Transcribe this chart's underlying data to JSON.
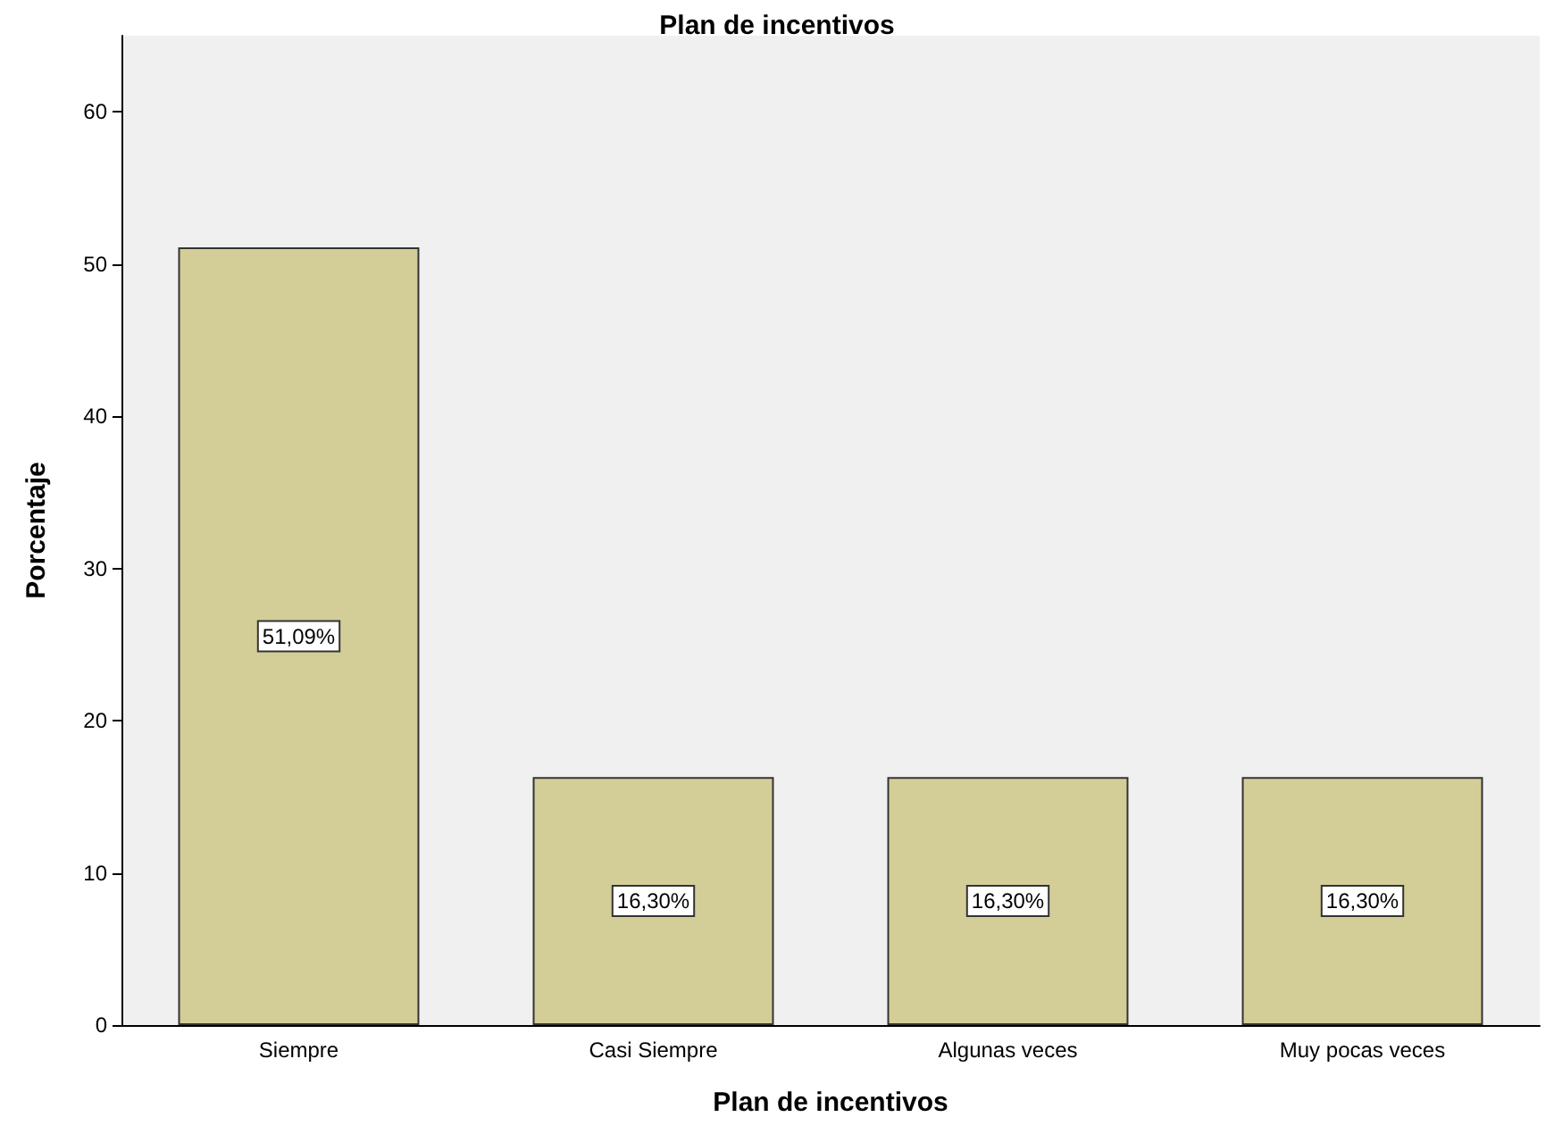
{
  "chart_data": {
    "type": "bar",
    "title": "Plan de incentivos",
    "xlabel": "Plan de incentivos",
    "ylabel": "Porcentaje",
    "categories": [
      "Siempre",
      "Casi Siempre",
      "Algunas veces",
      "Muy pocas veces"
    ],
    "values": [
      51.09,
      16.3,
      16.3,
      16.3
    ],
    "value_labels": [
      "51,09%",
      "16,30%",
      "16,30%",
      "16,30%"
    ],
    "color": "#d3ce98",
    "ylim": [
      0,
      65
    ],
    "yticks": [
      0,
      10,
      20,
      30,
      40,
      50,
      60
    ],
    "grid": false
  }
}
